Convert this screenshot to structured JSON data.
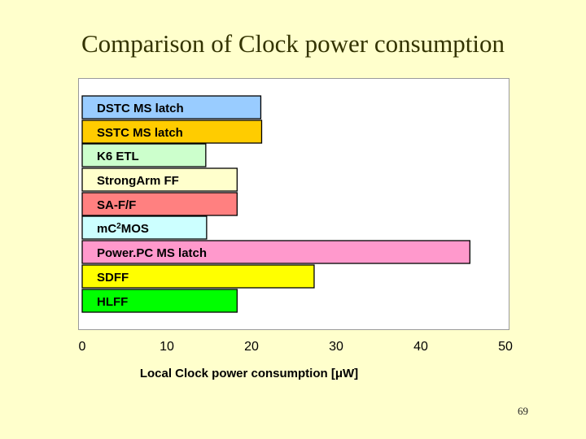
{
  "slide": {
    "title": "Comparison of Clock power consumption",
    "page_number": "69"
  },
  "chart_data": {
    "type": "bar",
    "orientation": "horizontal",
    "title": "Comparison of Clock power consumption",
    "xlabel": "Local Clock power consumption  [μW]",
    "ylabel": "",
    "xlim": [
      0,
      50
    ],
    "xticks": [
      0,
      10,
      20,
      30,
      40,
      50
    ],
    "grid": false,
    "legend": "none",
    "categories": [
      "DSTC MS latch",
      "SSTC MS latch",
      "K6 ETL",
      "StrongArm FF",
      "SA-F/F",
      "mC2MOS",
      "Power.PC MS latch",
      "SDFF",
      "HLFF"
    ],
    "values": [
      21.1,
      21.2,
      14.6,
      18.3,
      18.3,
      14.7,
      45.8,
      27.4,
      18.3
    ],
    "colors": [
      "#99ccff",
      "#ffcc00",
      "#ccffcc",
      "#ffffcc",
      "#ff8080",
      "#ccffff",
      "#ff99cc",
      "#ffff00",
      "#00ff00"
    ]
  }
}
